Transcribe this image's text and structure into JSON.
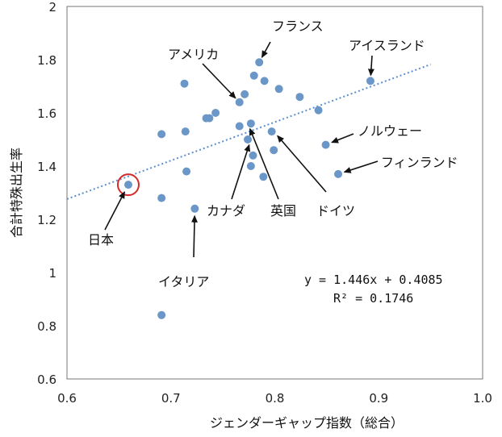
{
  "chart_data": {
    "type": "scatter",
    "title": "",
    "xlabel": "ジェンダーギャップ指数（総合）",
    "ylabel": "合計特殊出生率",
    "xlim": [
      0.6,
      1.0
    ],
    "ylim": [
      0.6,
      2.0
    ],
    "x_ticks": [
      "0.6",
      "0.7",
      "0.8",
      "0.9",
      "1.0"
    ],
    "y_ticks": [
      "0.6",
      "0.8",
      "1",
      "1.2",
      "1.4",
      "1.6",
      "1.8",
      "2"
    ],
    "grid": false,
    "marker_color": "#6a96c8",
    "trendline_color": "#5b8fd0",
    "highlight_color": "#d62a2a",
    "points": [
      {
        "x": 0.659,
        "y": 1.33
      },
      {
        "x": 0.691,
        "y": 0.84
      },
      {
        "x": 0.691,
        "y": 1.28
      },
      {
        "x": 0.691,
        "y": 1.52
      },
      {
        "x": 0.713,
        "y": 1.71
      },
      {
        "x": 0.714,
        "y": 1.53
      },
      {
        "x": 0.715,
        "y": 1.38
      },
      {
        "x": 0.723,
        "y": 1.24
      },
      {
        "x": 0.734,
        "y": 1.58
      },
      {
        "x": 0.737,
        "y": 1.58
      },
      {
        "x": 0.743,
        "y": 1.6
      },
      {
        "x": 0.766,
        "y": 1.55
      },
      {
        "x": 0.766,
        "y": 1.64
      },
      {
        "x": 0.771,
        "y": 1.67
      },
      {
        "x": 0.774,
        "y": 1.5
      },
      {
        "x": 0.777,
        "y": 1.56
      },
      {
        "x": 0.777,
        "y": 1.4
      },
      {
        "x": 0.779,
        "y": 1.44
      },
      {
        "x": 0.78,
        "y": 1.74
      },
      {
        "x": 0.785,
        "y": 1.79
      },
      {
        "x": 0.789,
        "y": 1.36
      },
      {
        "x": 0.79,
        "y": 1.72
      },
      {
        "x": 0.797,
        "y": 1.53
      },
      {
        "x": 0.799,
        "y": 1.46
      },
      {
        "x": 0.804,
        "y": 1.69
      },
      {
        "x": 0.824,
        "y": 1.66
      },
      {
        "x": 0.842,
        "y": 1.61
      },
      {
        "x": 0.849,
        "y": 1.48
      },
      {
        "x": 0.861,
        "y": 1.37
      },
      {
        "x": 0.892,
        "y": 1.72
      }
    ],
    "trendline": {
      "slope": 1.446,
      "intercept": 0.4085,
      "x_range": [
        0.6,
        0.95
      ]
    },
    "equation_line1": "y = 1.446x + 0.4085",
    "equation_line2": "R² = 0.1746",
    "annotations": [
      {
        "text": "フランス",
        "arrow_to": [
          0.785,
          1.79
        ]
      },
      {
        "text": "アイスランド",
        "arrow_to": [
          0.892,
          1.72
        ]
      },
      {
        "text": "アメリカ",
        "arrow_to": [
          0.766,
          1.64
        ]
      },
      {
        "text": "ノルウェー",
        "arrow_to": [
          0.849,
          1.48
        ]
      },
      {
        "text": "フィンランド",
        "arrow_to": [
          0.861,
          1.37
        ]
      },
      {
        "text": "カナダ",
        "arrow_to": [
          0.777,
          1.5
        ]
      },
      {
        "text": "英国",
        "arrow_to": [
          0.774,
          1.56
        ]
      },
      {
        "text": "ドイツ",
        "arrow_to": [
          0.799,
          1.53
        ]
      },
      {
        "text": "イタリア",
        "arrow_to": [
          0.723,
          1.24
        ]
      },
      {
        "text": "日本",
        "arrow_to": [
          0.659,
          1.33
        ]
      }
    ],
    "highlight_point": {
      "x": 0.659,
      "y": 1.33
    }
  }
}
